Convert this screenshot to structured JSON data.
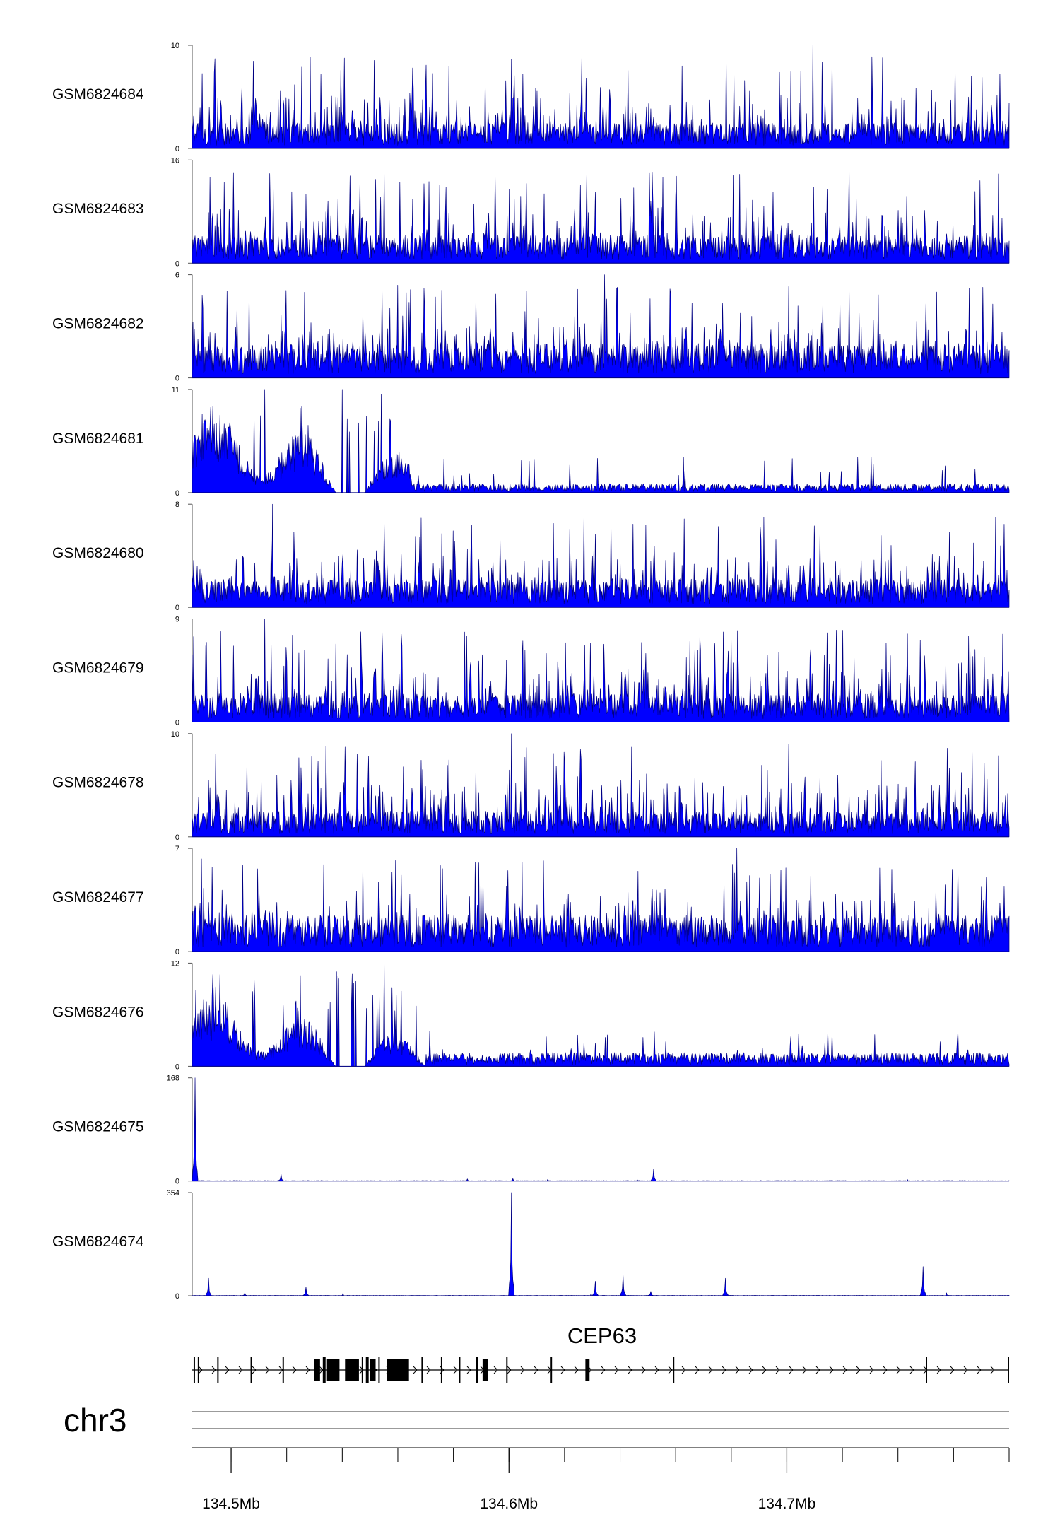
{
  "chart_data": {
    "type": "area",
    "chromosome": "chr3",
    "gene": "CEP63",
    "series_color": "#0000ff",
    "series_outline": "#000080",
    "region": {
      "start": 134.486,
      "end": 134.78,
      "unit": "Mb"
    },
    "x_tick_labels": [
      "134.5Mb",
      "134.6Mb",
      "134.7Mb"
    ],
    "x_tick_values": [
      134.5,
      134.6,
      134.7
    ],
    "minor_tick_step": 0.02,
    "tracks": [
      {
        "name": "GSM6824684",
        "ymin": 0,
        "ymax": 10,
        "ymin_label": "0",
        "ymax_label": "10",
        "profile": "uniform",
        "baseline": 2.0,
        "peak_max": 10,
        "peaks": [
          {
            "x": 134.7095,
            "y": 10
          }
        ]
      },
      {
        "name": "GSM6824683",
        "ymin": 0,
        "ymax": 16,
        "ymin_label": "0",
        "ymax_label": "16",
        "profile": "uniform",
        "baseline": 3.5,
        "peak_max": 16,
        "peaks": []
      },
      {
        "name": "GSM6824682",
        "ymin": 0,
        "ymax": 6,
        "ymin_label": "0",
        "ymax_label": "6",
        "profile": "uniform",
        "baseline": 1.6,
        "peak_max": 6,
        "peaks": [
          {
            "x": 134.6345,
            "y": 6
          }
        ]
      },
      {
        "name": "GSM6824681",
        "ymin": 0,
        "ymax": 11,
        "ymin_label": "0",
        "ymax_label": "11",
        "profile": "early-enriched",
        "baseline": 0.6,
        "peak_max": 11,
        "enriched_until": 134.565,
        "enriched_level": 4.5,
        "peaks": [
          {
            "x": 134.512,
            "y": 11
          },
          {
            "x": 134.54,
            "y": 11
          },
          {
            "x": 134.554,
            "y": 10.5
          }
        ]
      },
      {
        "name": "GSM6824680",
        "ymin": 0,
        "ymax": 8,
        "ymin_label": "0",
        "ymax_label": "8",
        "profile": "uniform",
        "baseline": 1.8,
        "peak_max": 8,
        "peaks": [
          {
            "x": 134.515,
            "y": 8
          }
        ]
      },
      {
        "name": "GSM6824679",
        "ymin": 0,
        "ymax": 9,
        "ymin_label": "0",
        "ymax_label": "9",
        "profile": "uniform",
        "baseline": 2.0,
        "peak_max": 9,
        "peaks": [
          {
            "x": 134.512,
            "y": 9
          }
        ]
      },
      {
        "name": "GSM6824678",
        "ymin": 0,
        "ymax": 10,
        "ymin_label": "0",
        "ymax_label": "10",
        "profile": "uniform",
        "baseline": 2.0,
        "peak_max": 10,
        "peaks": [
          {
            "x": 134.601,
            "y": 10
          }
        ]
      },
      {
        "name": "GSM6824677",
        "ymin": 0,
        "ymax": 7,
        "ymin_label": "0",
        "ymax_label": "7",
        "profile": "uniform",
        "baseline": 2.0,
        "peak_max": 7,
        "peaks": [
          {
            "x": 134.682,
            "y": 7
          }
        ]
      },
      {
        "name": "GSM6824676",
        "ymin": 0,
        "ymax": 12,
        "ymin_label": "0",
        "ymax_label": "12",
        "profile": "early-enriched",
        "baseline": 1.0,
        "peak_max": 12,
        "enriched_until": 134.57,
        "enriched_level": 4.0,
        "peaks": [
          {
            "x": 134.538,
            "y": 11
          },
          {
            "x": 134.555,
            "y": 12
          }
        ]
      },
      {
        "name": "GSM6824675",
        "ymin": 0,
        "ymax": 168,
        "ymin_label": "0",
        "ymax_label": "168",
        "profile": "sparse",
        "baseline": 0.6,
        "peak_max": 168,
        "peaks": [
          {
            "x": 134.487,
            "y": 168
          },
          {
            "x": 134.518,
            "y": 11
          },
          {
            "x": 134.6015,
            "y": 4
          },
          {
            "x": 134.652,
            "y": 20
          }
        ]
      },
      {
        "name": "GSM6824674",
        "ymin": 0,
        "ymax": 354,
        "ymin_label": "0",
        "ymax_label": "354",
        "profile": "sparse",
        "baseline": 1.0,
        "peak_max": 354,
        "peaks": [
          {
            "x": 134.492,
            "y": 60
          },
          {
            "x": 134.505,
            "y": 10
          },
          {
            "x": 134.527,
            "y": 30
          },
          {
            "x": 134.601,
            "y": 354
          },
          {
            "x": 134.631,
            "y": 50
          },
          {
            "x": 134.641,
            "y": 70
          },
          {
            "x": 134.651,
            "y": 15
          },
          {
            "x": 134.678,
            "y": 60
          },
          {
            "x": 134.749,
            "y": 100
          }
        ]
      }
    ],
    "gene_model": {
      "name": "CEP63",
      "strand": "+",
      "start": 134.486,
      "end": 134.78,
      "exons": [
        {
          "start": 134.4865,
          "end": 134.487
        },
        {
          "start": 134.488,
          "end": 134.4885
        },
        {
          "start": 134.495,
          "end": 134.4955
        },
        {
          "start": 134.507,
          "end": 134.5075
        },
        {
          "start": 134.5185,
          "end": 134.519
        },
        {
          "start": 134.53,
          "end": 134.532
        },
        {
          "start": 134.533,
          "end": 134.534
        },
        {
          "start": 134.5345,
          "end": 134.539
        },
        {
          "start": 134.541,
          "end": 134.546
        },
        {
          "start": 134.547,
          "end": 134.5475
        },
        {
          "start": 134.5485,
          "end": 134.5495
        },
        {
          "start": 134.55,
          "end": 134.552
        },
        {
          "start": 134.553,
          "end": 134.5535
        },
        {
          "start": 134.556,
          "end": 134.564
        },
        {
          "start": 134.5685,
          "end": 134.569
        },
        {
          "start": 134.5755,
          "end": 134.576
        },
        {
          "start": 134.582,
          "end": 134.5825
        },
        {
          "start": 134.588,
          "end": 134.589
        },
        {
          "start": 134.5905,
          "end": 134.5925
        },
        {
          "start": 134.599,
          "end": 134.5995
        },
        {
          "start": 134.615,
          "end": 134.6155
        },
        {
          "start": 134.6275,
          "end": 134.629
        },
        {
          "start": 134.659,
          "end": 134.6595
        },
        {
          "start": 134.75,
          "end": 134.7505
        },
        {
          "start": 134.7795,
          "end": 134.78
        }
      ]
    }
  }
}
